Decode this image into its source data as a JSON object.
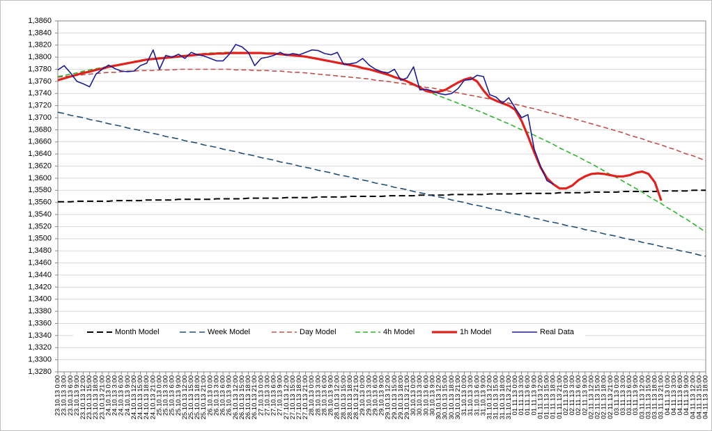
{
  "chart_data": {
    "type": "line",
    "categories": [
      "23.10.13 0:00",
      "23.10.13 3:00",
      "23.10.13 6:00",
      "23.10.13 9:00",
      "23.10.13 12:00",
      "23.10.13 15:00",
      "23.10.13 18:00",
      "23.10.13 21:00",
      "24.10.13 0:00",
      "24.10.13 3:00",
      "24.10.13 6:00",
      "24.10.13 9:00",
      "24.10.13 12:00",
      "24.10.13 15:00",
      "24.10.13 18:00",
      "24.10.13 21:00",
      "25.10.13 0:00",
      "25.10.13 3:00",
      "25.10.13 6:00",
      "25.10.13 9:00",
      "25.10.13 12:00",
      "25.10.13 15:00",
      "25.10.13 18:00",
      "25.10.13 21:00",
      "26.10.13 0:00",
      "26.10.13 3:00",
      "26.10.13 6:00",
      "26.10.13 9:00",
      "26.10.13 12:00",
      "26.10.13 15:00",
      "26.10.13 18:00",
      "26.10.13 21:00",
      "27.10.13 0:00",
      "27.10.13 3:00",
      "27.10.13 6:00",
      "27.10.13 9:00",
      "27.10.13 12:00",
      "27.10.13 15:00",
      "27.10.13 18:00",
      "27.10.13 21:00",
      "28.10.13 0:00",
      "28.10.13 3:00",
      "28.10.13 6:00",
      "28.10.13 9:00",
      "28.10.13 12:00",
      "28.10.13 15:00",
      "28.10.13 18:00",
      "28.10.13 21:00",
      "29.10.13 0:00",
      "29.10.13 3:00",
      "29.10.13 6:00",
      "29.10.13 9:00",
      "29.10.13 12:00",
      "29.10.13 15:00",
      "29.10.13 18:00",
      "29.10.13 21:00",
      "30.10.13 0:00",
      "30.10.13 3:00",
      "30.10.13 6:00",
      "30.10.13 9:00",
      "30.10.13 12:00",
      "30.10.13 15:00",
      "30.10.13 18:00",
      "30.10.13 21:00",
      "31.10.13 0:00",
      "31.10.13 3:00",
      "31.10.13 6:00",
      "31.10.13 9:00",
      "31.10.13 12:00",
      "31.10.13 15:00",
      "31.10.13 18:00",
      "31.10.13 21:00",
      "01.11.13 0:00",
      "01.11.13 3:00",
      "01.11.13 6:00",
      "01.11.13 9:00",
      "01.11.13 12:00",
      "01.11.13 15:00",
      "01.11.13 18:00",
      "01.11.13 21:00",
      "02.11.13 0:00",
      "02.11.13 3:00",
      "02.11.13 6:00",
      "02.11.13 9:00",
      "02.11.13 12:00",
      "02.11.13 15:00",
      "02.11.13 18:00",
      "02.11.13 21:00",
      "03.11.13 0:00",
      "03.11.13 3:00",
      "03.11.13 6:00",
      "03.11.13 9:00",
      "03.11.13 12:00",
      "03.11.13 15:00",
      "03.11.13 18:00",
      "03.11.13 21:00",
      "04.11.13 0:00",
      "04.11.13 3:00",
      "04.11.13 6:00",
      "04.11.13 9:00",
      "04.11.13 12:00",
      "04.11.13 15:00",
      "04.11.13 18:00"
    ],
    "ylim": [
      1.328,
      1.386
    ],
    "yticks": [
      {
        "value": 1.328,
        "label": "1,3280"
      },
      {
        "value": 1.33,
        "label": "1,3300"
      },
      {
        "value": 1.332,
        "label": "1,3320"
      },
      {
        "value": 1.334,
        "label": "1,3340"
      },
      {
        "value": 1.336,
        "label": "1,3360"
      },
      {
        "value": 1.338,
        "label": "1,3380"
      },
      {
        "value": 1.34,
        "label": "1,3400"
      },
      {
        "value": 1.342,
        "label": "1,3420"
      },
      {
        "value": 1.344,
        "label": "1,3440"
      },
      {
        "value": 1.346,
        "label": "1,3460"
      },
      {
        "value": 1.348,
        "label": "1,3480"
      },
      {
        "value": 1.35,
        "label": "1,3500"
      },
      {
        "value": 1.352,
        "label": "1,3520"
      },
      {
        "value": 1.354,
        "label": "1,3540"
      },
      {
        "value": 1.356,
        "label": "1,3560"
      },
      {
        "value": 1.358,
        "label": "1,3580"
      },
      {
        "value": 1.36,
        "label": "1,3600"
      },
      {
        "value": 1.362,
        "label": "1,3620"
      },
      {
        "value": 1.364,
        "label": "1,3640"
      },
      {
        "value": 1.366,
        "label": "1,3660"
      },
      {
        "value": 1.368,
        "label": "1,3680"
      },
      {
        "value": 1.37,
        "label": "1,3700"
      },
      {
        "value": 1.372,
        "label": "1,3720"
      },
      {
        "value": 1.374,
        "label": "1,3740"
      },
      {
        "value": 1.376,
        "label": "1,3760"
      },
      {
        "value": 1.378,
        "label": "1,3780"
      },
      {
        "value": 1.38,
        "label": "1,3800"
      },
      {
        "value": 1.382,
        "label": "1,3820"
      },
      {
        "value": 1.384,
        "label": "1,3840"
      },
      {
        "value": 1.386,
        "label": "1,3860"
      }
    ],
    "grid": true,
    "legend": "bottom",
    "series": [
      {
        "name": "Month Model",
        "color": "#000000",
        "line_style": "dashed",
        "values": [
          1.3561,
          1.3561,
          1.3561,
          1.3562,
          1.3562,
          1.3562,
          1.3562,
          1.3562,
          1.3562,
          1.3563,
          1.3563,
          1.3563,
          1.3563,
          1.3563,
          1.3564,
          1.3564,
          1.3564,
          1.3564,
          1.3564,
          1.3565,
          1.3565,
          1.3565,
          1.3565,
          1.3565,
          1.3565,
          1.3566,
          1.3566,
          1.3566,
          1.3566,
          1.3566,
          1.3567,
          1.3567,
          1.3567,
          1.3567,
          1.3567,
          1.3567,
          1.3568,
          1.3568,
          1.3568,
          1.3568,
          1.3568,
          1.3569,
          1.3569,
          1.3569,
          1.3569,
          1.3569,
          1.357,
          1.357,
          1.357,
          1.357,
          1.357,
          1.357,
          1.3571,
          1.3571,
          1.3571,
          1.3571,
          1.3571,
          1.3572,
          1.3572,
          1.3572,
          1.3572,
          1.3572,
          1.3573,
          1.3573,
          1.3573,
          1.3573,
          1.3573,
          1.3573,
          1.3574,
          1.3574,
          1.3574,
          1.3574,
          1.3574,
          1.3575,
          1.3575,
          1.3575,
          1.3575,
          1.3575,
          1.3575,
          1.3576,
          1.3576,
          1.3576,
          1.3576,
          1.3576,
          1.3577,
          1.3577,
          1.3577,
          1.3577,
          1.3577,
          1.3578,
          1.3578,
          1.3578,
          1.3578,
          1.3578,
          1.3578,
          1.3579,
          1.3579,
          1.3579,
          1.3579,
          1.3579,
          1.358,
          1.358,
          1.358
        ]
      },
      {
        "name": "Week Model",
        "color": "#1f4e79",
        "line_style": "dashed",
        "values": [
          1.3709,
          1.3707,
          1.3704,
          1.3702,
          1.37,
          1.3697,
          1.3695,
          1.3693,
          1.369,
          1.3688,
          1.3686,
          1.3683,
          1.3681,
          1.3679,
          1.3676,
          1.3674,
          1.3672,
          1.3669,
          1.3667,
          1.3665,
          1.3662,
          1.366,
          1.3658,
          1.3655,
          1.3653,
          1.3651,
          1.3648,
          1.3646,
          1.3644,
          1.3641,
          1.3639,
          1.3637,
          1.3634,
          1.3632,
          1.363,
          1.3627,
          1.3625,
          1.3623,
          1.362,
          1.3618,
          1.3616,
          1.3613,
          1.3611,
          1.3609,
          1.3606,
          1.3604,
          1.3602,
          1.3599,
          1.3597,
          1.3595,
          1.3592,
          1.359,
          1.3588,
          1.3585,
          1.3583,
          1.3581,
          1.3578,
          1.3576,
          1.3574,
          1.3571,
          1.3569,
          1.3567,
          1.3564,
          1.3562,
          1.356,
          1.3557,
          1.3555,
          1.3553,
          1.355,
          1.3548,
          1.3546,
          1.3543,
          1.3541,
          1.3539,
          1.3536,
          1.3534,
          1.3532,
          1.3529,
          1.3527,
          1.3525,
          1.3522,
          1.352,
          1.3518,
          1.3515,
          1.3513,
          1.3511,
          1.3508,
          1.3506,
          1.3504,
          1.3501,
          1.3499,
          1.3497,
          1.3494,
          1.3492,
          1.349,
          1.3487,
          1.3485,
          1.3483,
          1.348,
          1.3478,
          1.3476,
          1.3473,
          1.3471
        ]
      },
      {
        "name": "Day Model",
        "color": "#c0504d",
        "line_style": "dashed",
        "values": [
          1.3767,
          1.3768,
          1.3769,
          1.377,
          1.3771,
          1.3772,
          1.3773,
          1.3774,
          1.3775,
          1.3775,
          1.3776,
          1.3777,
          1.3777,
          1.3778,
          1.3778,
          1.3778,
          1.3779,
          1.3779,
          1.3779,
          1.378,
          1.378,
          1.378,
          1.378,
          1.378,
          1.378,
          1.378,
          1.378,
          1.378,
          1.3779,
          1.3779,
          1.3779,
          1.3778,
          1.3778,
          1.3778,
          1.3777,
          1.3777,
          1.3776,
          1.3775,
          1.3775,
          1.3774,
          1.3773,
          1.3772,
          1.3771,
          1.377,
          1.3769,
          1.3768,
          1.3767,
          1.3766,
          1.3765,
          1.3764,
          1.3762,
          1.3761,
          1.376,
          1.3758,
          1.3757,
          1.3755,
          1.3754,
          1.3752,
          1.375,
          1.3749,
          1.3747,
          1.3745,
          1.3743,
          1.3741,
          1.3739,
          1.3737,
          1.3735,
          1.3733,
          1.3731,
          1.3729,
          1.3727,
          1.3724,
          1.3722,
          1.372,
          1.3717,
          1.3715,
          1.3712,
          1.3709,
          1.3707,
          1.3704,
          1.3701,
          1.3699,
          1.3696,
          1.3693,
          1.369,
          1.3687,
          1.3684,
          1.3681,
          1.3678,
          1.3675,
          1.3671,
          1.3668,
          1.3665,
          1.3661,
          1.3658,
          1.3655,
          1.3651,
          1.3648,
          1.3644,
          1.364,
          1.3637,
          1.3633,
          1.3629
        ]
      },
      {
        "name": "4h Model",
        "color": "#2db52d",
        "line_style": "dashed",
        "values": [
          1.3768,
          1.377,
          1.3772,
          1.3774,
          1.3777,
          1.3779,
          1.3781,
          1.3783,
          1.3785,
          1.3787,
          1.3789,
          1.3791,
          1.3793,
          1.3795,
          1.3797,
          1.3798,
          1.3799,
          1.38,
          1.3801,
          1.3802,
          1.3803,
          1.3804,
          1.3805,
          1.3806,
          1.3807,
          1.3807,
          1.3808,
          1.3808,
          1.3808,
          1.3808,
          1.3807,
          1.3807,
          1.3807,
          1.3806,
          1.3806,
          1.3805,
          1.3804,
          1.3803,
          1.3802,
          1.3801,
          1.3799,
          1.3797,
          1.3795,
          1.3793,
          1.3791,
          1.3789,
          1.3787,
          1.3785,
          1.3782,
          1.378,
          1.3777,
          1.3774,
          1.3771,
          1.3767,
          1.3764,
          1.376,
          1.3755,
          1.375,
          1.3744,
          1.374,
          1.3736,
          1.3732,
          1.3728,
          1.3724,
          1.372,
          1.3716,
          1.3712,
          1.3708,
          1.3703,
          1.3699,
          1.3694,
          1.369,
          1.3685,
          1.368,
          1.3676,
          1.3671,
          1.3666,
          1.3661,
          1.3656,
          1.365,
          1.3645,
          1.364,
          1.3635,
          1.3629,
          1.3624,
          1.3618,
          1.3612,
          1.3606,
          1.3601,
          1.3595,
          1.3589,
          1.3583,
          1.3577,
          1.357,
          1.3564,
          1.3558,
          1.3551,
          1.3545,
          1.3538,
          1.3532,
          1.3525,
          1.3518,
          1.3511
        ]
      },
      {
        "name": "1h Model",
        "color": "#e3211c",
        "line_style": "solid",
        "values": [
          1.3762,
          1.3765,
          1.3768,
          1.3771,
          1.3774,
          1.3776,
          1.3779,
          1.3781,
          1.3784,
          1.3786,
          1.3788,
          1.379,
          1.3792,
          1.3794,
          1.3796,
          1.3797,
          1.3798,
          1.3799,
          1.38,
          1.3801,
          1.3802,
          1.3803,
          1.3804,
          1.3805,
          1.3805,
          1.3806,
          1.3806,
          1.3807,
          1.3807,
          1.3807,
          1.3807,
          1.3807,
          1.3807,
          1.3806,
          1.3806,
          1.3805,
          1.3804,
          1.3803,
          1.3802,
          1.3801,
          1.3799,
          1.3797,
          1.3795,
          1.3793,
          1.3791,
          1.3789,
          1.3787,
          1.3785,
          1.3782,
          1.378,
          1.3777,
          1.3774,
          1.3771,
          1.3767,
          1.3764,
          1.376,
          1.3755,
          1.375,
          1.3744,
          1.3742,
          1.3743,
          1.3746,
          1.3752,
          1.3758,
          1.3763,
          1.3766,
          1.376,
          1.3745,
          1.3733,
          1.3728,
          1.3724,
          1.372,
          1.3713,
          1.3695,
          1.367,
          1.3643,
          1.3618,
          1.36,
          1.359,
          1.3583,
          1.3583,
          1.3588,
          1.3597,
          1.3603,
          1.3607,
          1.3608,
          1.3607,
          1.3605,
          1.3603,
          1.3603,
          1.3605,
          1.3609,
          1.3611,
          1.3607,
          1.3593,
          1.3563,
          null,
          null,
          null,
          null,
          null,
          null,
          null
        ]
      },
      {
        "name": "Real Data",
        "color": "#1c1c94",
        "line_style": "solid",
        "values": [
          1.3779,
          1.3786,
          1.3774,
          1.376,
          1.3756,
          1.3751,
          1.3772,
          1.378,
          1.3787,
          1.3781,
          1.3777,
          1.3776,
          1.3777,
          1.3786,
          1.379,
          1.3812,
          1.378,
          1.3803,
          1.38,
          1.3805,
          1.3798,
          1.3808,
          1.3804,
          1.3802,
          1.3798,
          1.3794,
          1.3794,
          1.3805,
          1.3821,
          1.3817,
          1.3808,
          1.3786,
          1.3798,
          1.38,
          1.3803,
          1.3808,
          1.3803,
          1.3806,
          1.3804,
          1.3808,
          1.3812,
          1.3811,
          1.3806,
          1.3804,
          1.3808,
          1.3788,
          1.3789,
          1.3791,
          1.3798,
          1.3787,
          1.378,
          1.3776,
          1.3774,
          1.378,
          1.3762,
          1.3766,
          1.3784,
          1.3746,
          1.3747,
          1.3744,
          1.374,
          1.3738,
          1.374,
          1.3748,
          1.3762,
          1.3763,
          1.377,
          1.3768,
          1.3738,
          1.3734,
          1.3724,
          1.3733,
          1.3716,
          1.37,
          1.3705,
          1.3648,
          1.362,
          1.3596,
          1.359,
          null,
          null,
          null,
          null,
          null,
          null,
          null,
          null,
          null,
          null,
          null,
          null,
          null,
          null,
          null,
          null,
          null,
          null,
          null,
          null,
          null,
          null,
          null,
          null
        ]
      }
    ]
  }
}
